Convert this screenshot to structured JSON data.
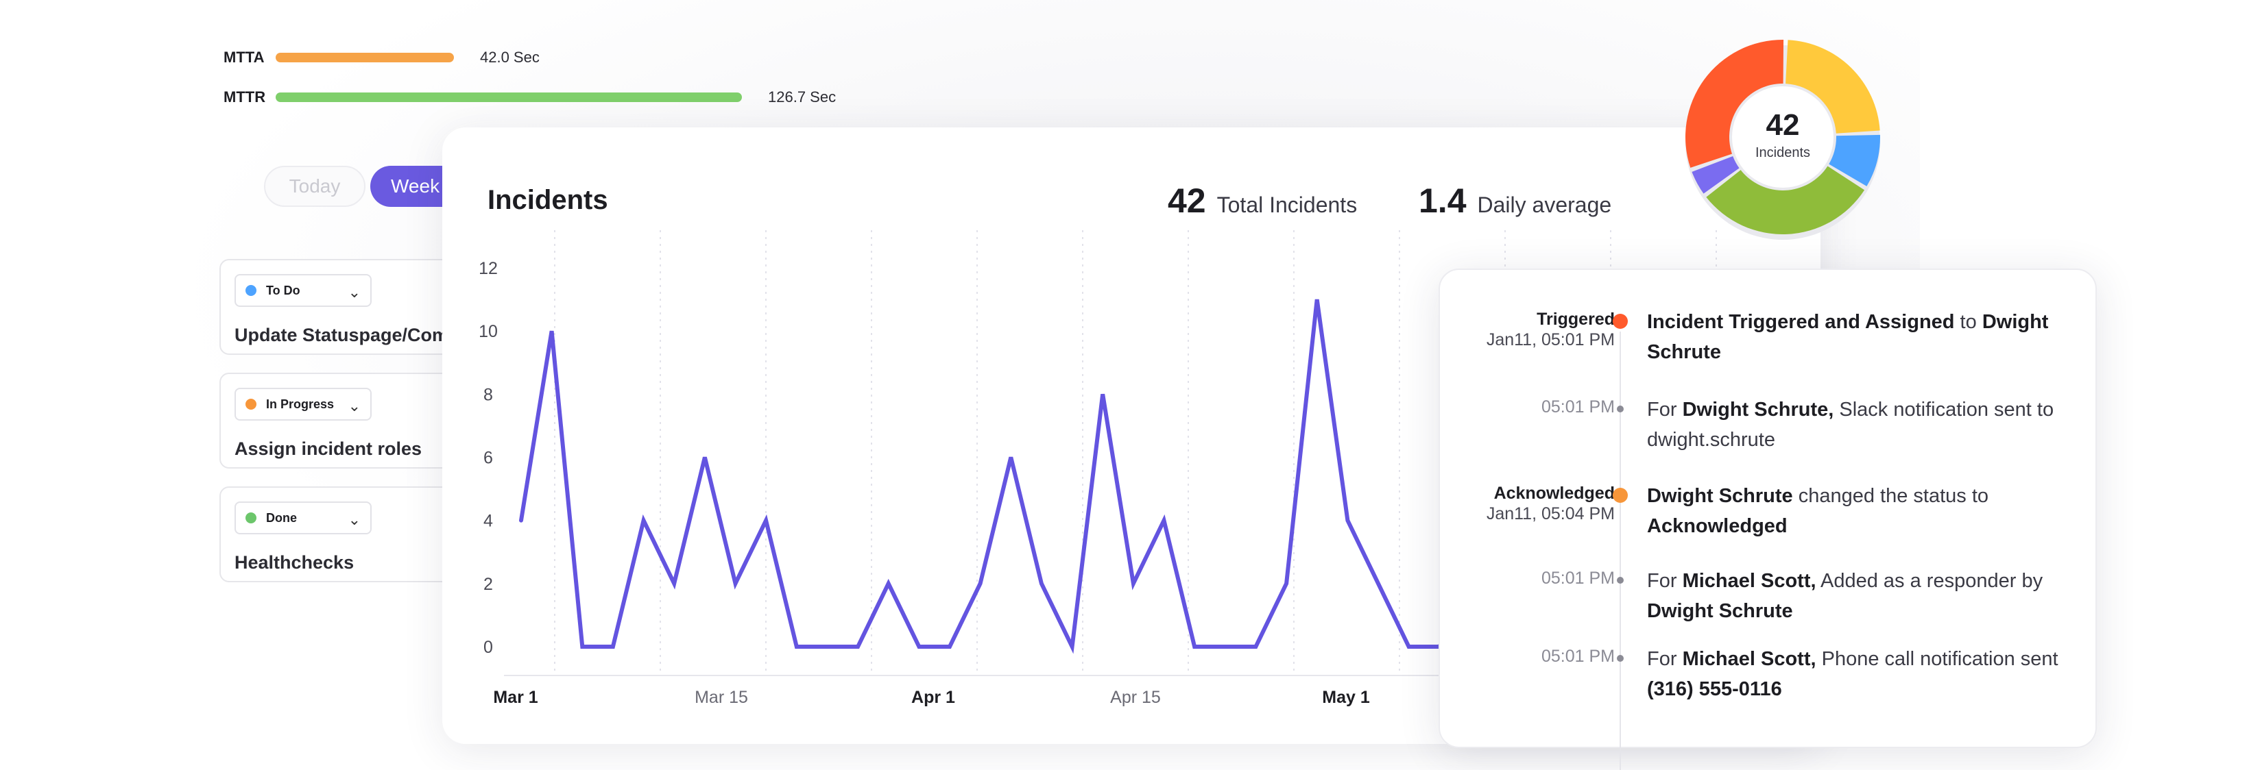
{
  "metrics": [
    {
      "label": "MTTA",
      "value": "42.0 Sec",
      "color": "#f6a347"
    },
    {
      "label": "MTTR",
      "value": "126.7 Sec",
      "color": "#7fcf6b"
    }
  ],
  "range_tabs": {
    "today": "Today",
    "week": "Week"
  },
  "tasks": [
    {
      "status": "To Do",
      "status_color": "#4da3ff",
      "title": "Update Statuspage/Com"
    },
    {
      "status": "In Progress",
      "status_color": "#f7963a",
      "title": "Assign incident roles"
    },
    {
      "status": "Done",
      "status_color": "#6cc66b",
      "title": "Healthchecks"
    }
  ],
  "incidents_card": {
    "title": "Incidents",
    "total_value": "42",
    "total_label": "Total Incidents",
    "avg_value": "1.4",
    "avg_label": "Daily average"
  },
  "chart_data": {
    "type": "line",
    "title": "Incidents",
    "xlabel": "",
    "ylabel": "",
    "ylim": [
      0,
      12
    ],
    "yticks": [
      0,
      2,
      4,
      6,
      8,
      10,
      12
    ],
    "xtick_labels": [
      "Mar 1",
      "Mar 15",
      "Apr 1",
      "Apr 15",
      "May 1"
    ],
    "color": "#6354e0",
    "values": [
      4,
      10,
      0,
      0,
      4,
      2,
      6,
      2,
      4,
      0,
      0,
      0,
      2,
      0,
      0,
      2,
      6,
      2,
      0,
      8,
      2,
      4,
      0,
      0,
      0,
      2,
      11,
      4,
      2,
      0,
      0,
      2,
      2,
      0,
      4,
      0,
      0,
      0,
      6,
      0,
      2,
      8,
      0
    ]
  },
  "donut": {
    "value": "42",
    "label": "Incidents",
    "segments": [
      {
        "value": 10,
        "color": "#ffc93c"
      },
      {
        "value": 4,
        "color": "#4da3ff"
      },
      {
        "value": 13,
        "color": "#8fbc3a"
      },
      {
        "value": 2,
        "color": "#7a6cf0"
      },
      {
        "value": 13,
        "color": "#ff5a2c"
      }
    ]
  },
  "timeline": [
    {
      "state": "Triggered",
      "time": "Jan11, 05:01 PM",
      "marker": "big",
      "marker_color": "#ff5a2c",
      "parts": [
        {
          "t": "Incident Triggered and Assigned",
          "b": true
        },
        {
          "t": " to ",
          "b": false
        },
        {
          "t": "Dwight Schrute",
          "b": true
        }
      ]
    },
    {
      "state": "",
      "time": "05:01 PM",
      "marker": "small",
      "marker_color": "#8b8b95",
      "parts": [
        {
          "t": "For ",
          "b": false
        },
        {
          "t": "Dwight Schrute,",
          "b": true
        },
        {
          "t": " Slack notification sent to dwight.schrute",
          "b": false
        }
      ]
    },
    {
      "state": "Acknowledged",
      "time": "Jan11, 05:04 PM",
      "marker": "big",
      "marker_color": "#f7963a",
      "parts": [
        {
          "t": "Dwight Schrute",
          "b": true
        },
        {
          "t": " changed the status to ",
          "b": false
        },
        {
          "t": "Acknowledged",
          "b": true
        }
      ]
    },
    {
      "state": "",
      "time": "05:01 PM",
      "marker": "small",
      "marker_color": "#8b8b95",
      "parts": [
        {
          "t": "For ",
          "b": false
        },
        {
          "t": "Michael Scott,",
          "b": true
        },
        {
          "t": " Added as a responder by ",
          "b": false
        },
        {
          "t": "Dwight Schrute",
          "b": true
        }
      ]
    },
    {
      "state": "",
      "time": "05:01 PM",
      "marker": "small",
      "marker_color": "#8b8b95",
      "parts": [
        {
          "t": "For ",
          "b": false
        },
        {
          "t": "Michael Scott,",
          "b": true
        },
        {
          "t": " Phone call notification sent ",
          "b": false
        },
        {
          "t": "(316) 555-0116",
          "b": true
        }
      ]
    }
  ]
}
